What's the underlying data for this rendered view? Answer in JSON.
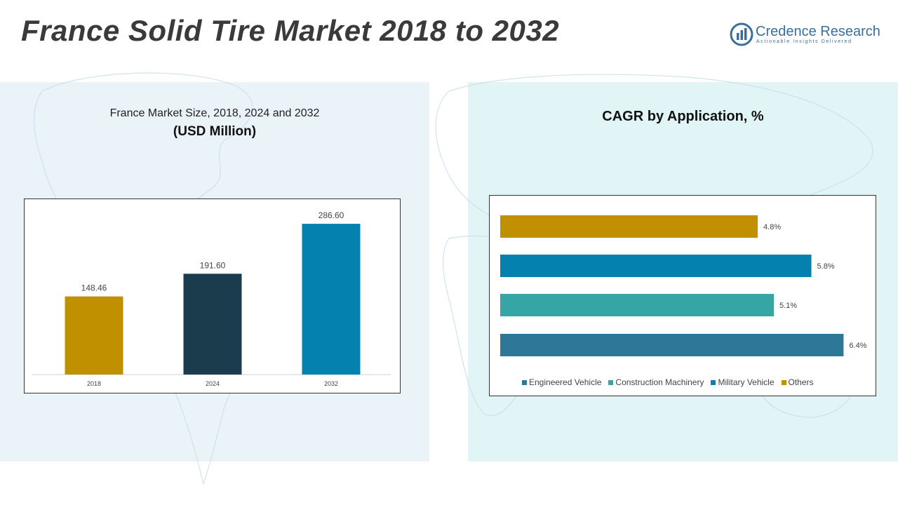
{
  "header": {
    "title": "France Solid Tire Market 2018 to 2032"
  },
  "logo": {
    "name": "Credence Research",
    "tagline": "Actionable Insights Delivered"
  },
  "left_panel": {
    "subtitle": "France Market Size, 2018, 2024 and 2032",
    "unit": "(USD Million)"
  },
  "right_panel": {
    "title": "CAGR by Application, %"
  },
  "chart_data": [
    {
      "type": "bar",
      "title": "France Market Size, 2018, 2024 and 2032 (USD Million)",
      "categories": [
        "2018",
        "2024",
        "2032"
      ],
      "values": [
        148.46,
        191.6,
        286.6
      ],
      "labels": [
        "148.46",
        "191.60",
        "286.60"
      ],
      "colors": [
        "#c09000",
        "#1a3c4c",
        "#0581b0"
      ],
      "ylim": [
        0,
        320
      ]
    },
    {
      "type": "bar",
      "orientation": "horizontal",
      "title": "CAGR by Application, %",
      "categories": [
        "Others",
        "Military Vehicle",
        "Construction Machinery",
        "Engineered Vehicle"
      ],
      "values": [
        4.8,
        5.8,
        5.1,
        6.4
      ],
      "labels": [
        "4.8%",
        "5.8%",
        "5.1%",
        "6.4%"
      ],
      "colors": [
        "#c09000",
        "#0581b0",
        "#35a6a4",
        "#2d7898"
      ],
      "legend": [
        "Engineered Vehicle",
        "Construction Machinery",
        "Military Vehicle",
        "Others"
      ],
      "legend_colors": [
        "#2d7898",
        "#35a6a4",
        "#0581b0",
        "#c09000"
      ],
      "xlim": [
        0,
        6.8
      ]
    }
  ]
}
